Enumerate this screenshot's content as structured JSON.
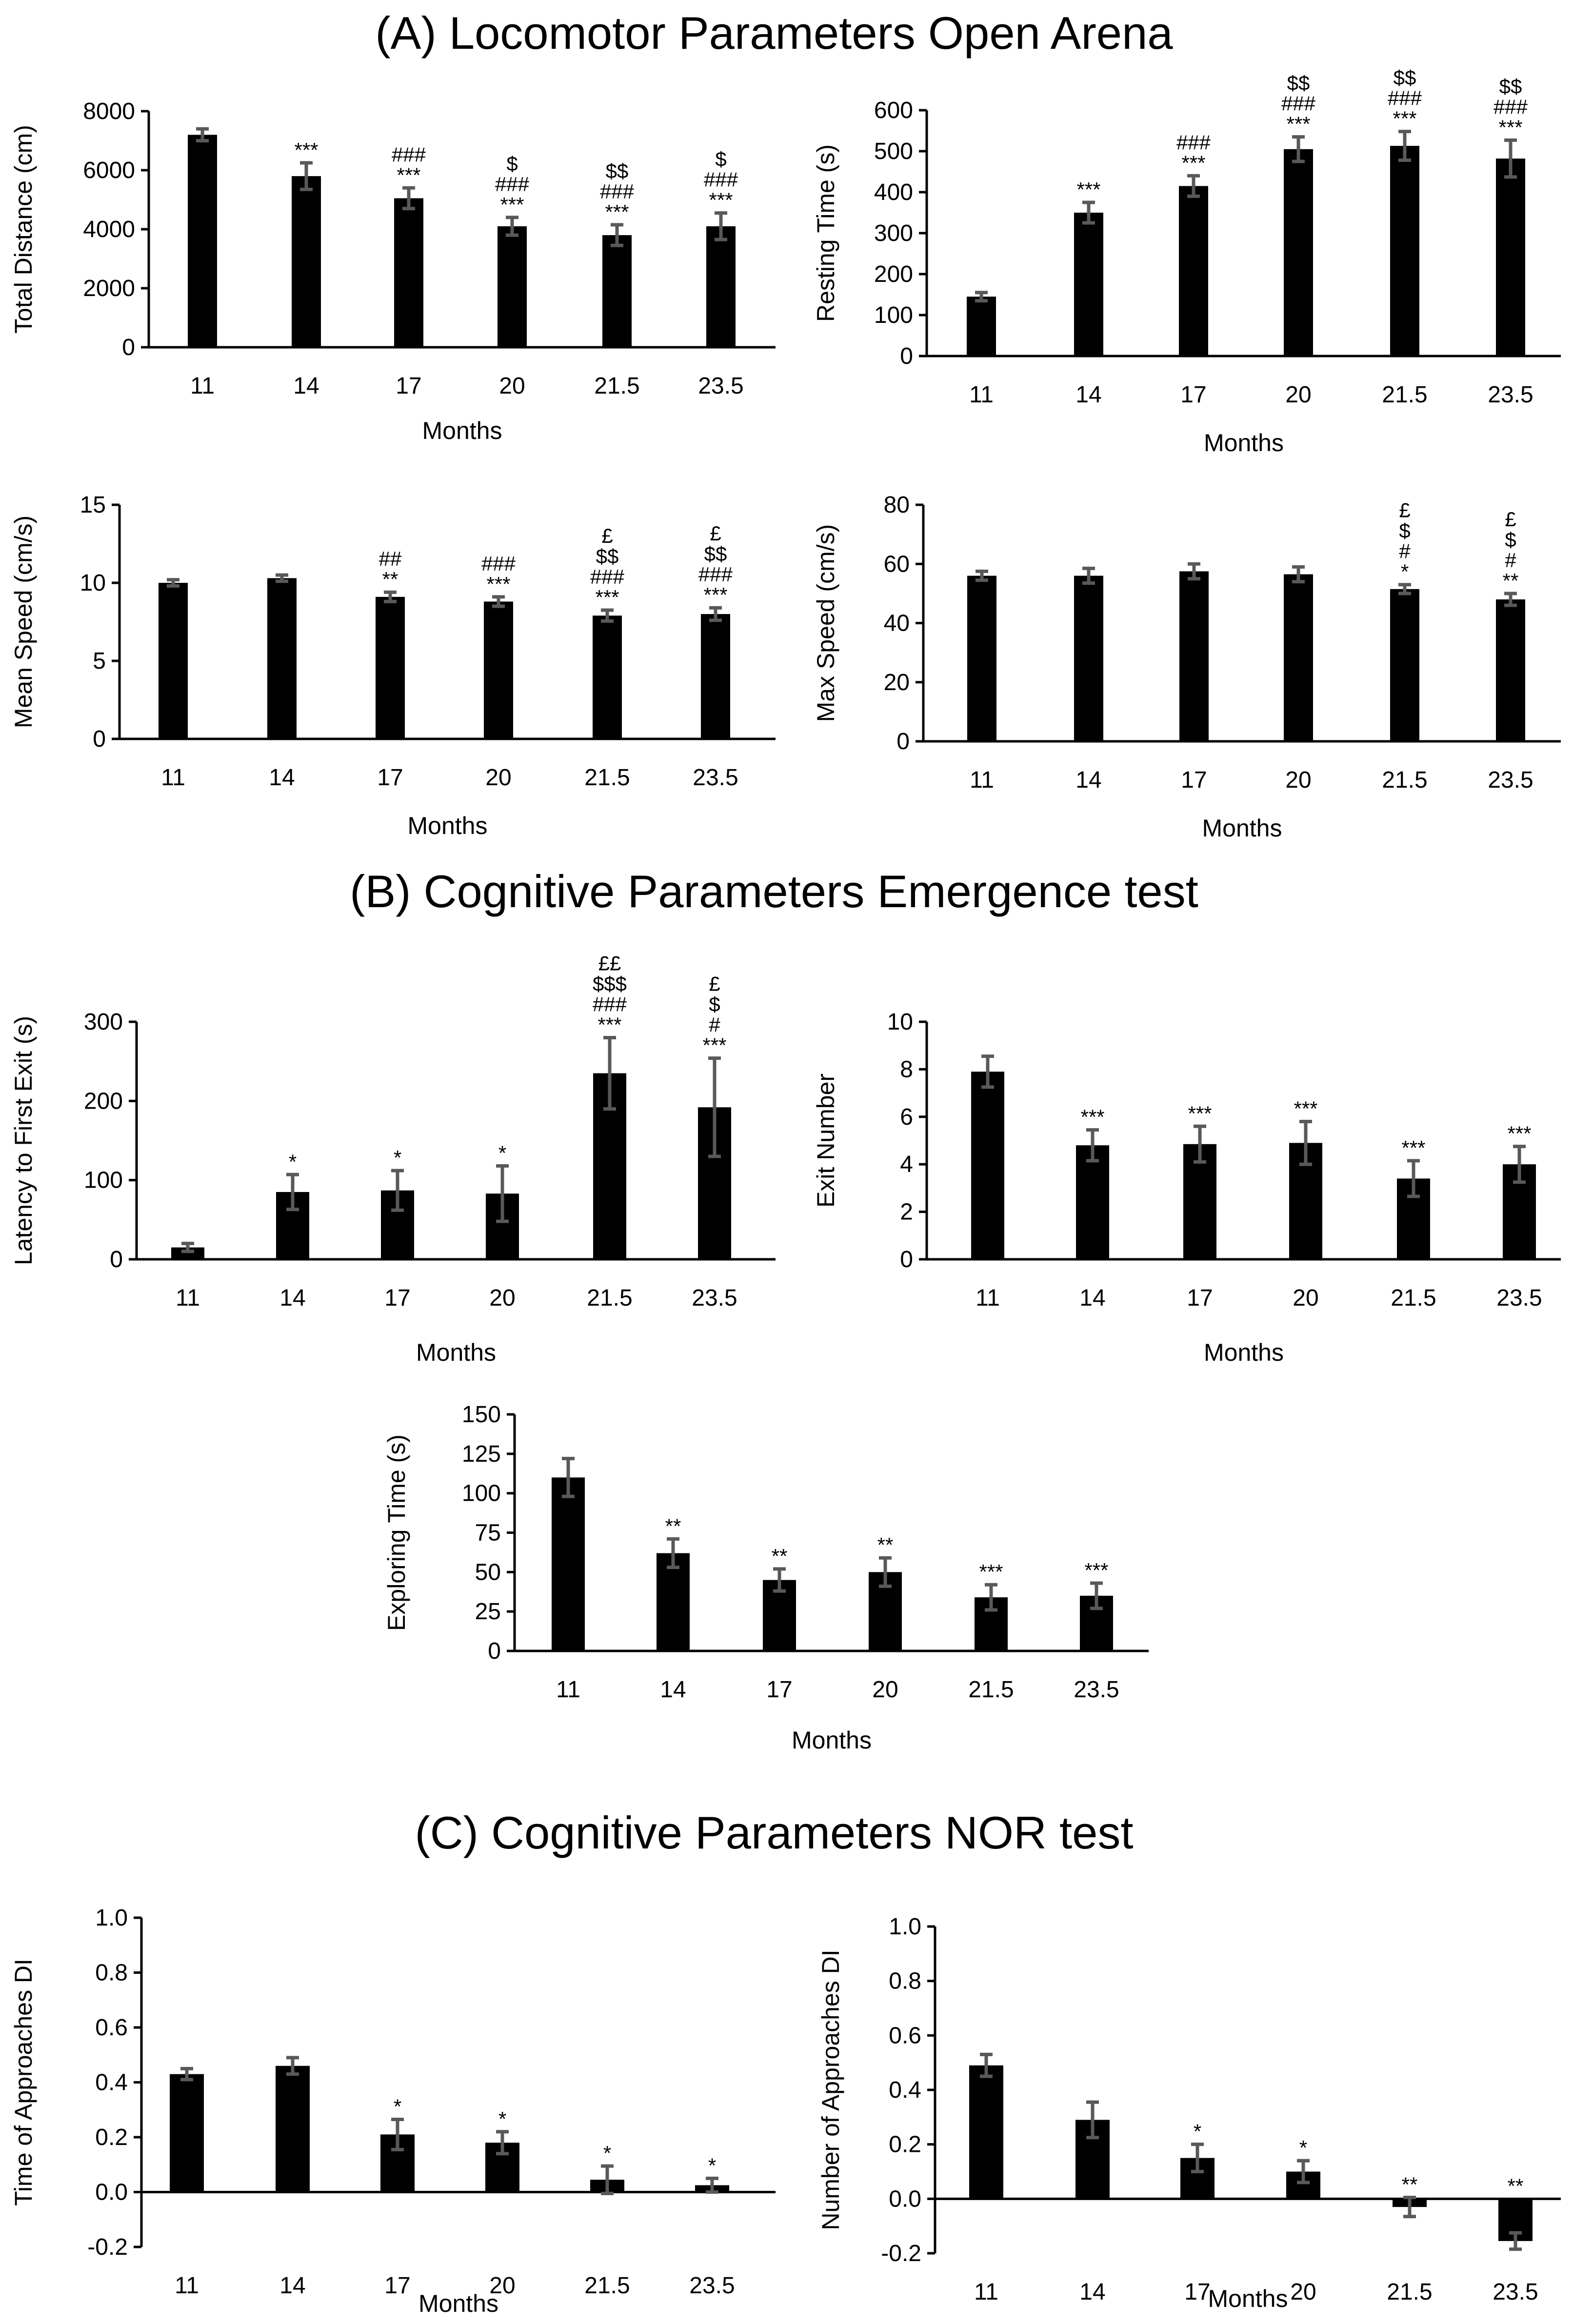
{
  "sections": {
    "A": "(A) Locomotor Parameters Open Arena",
    "B": "(B) Cognitive Parameters Emergence test",
    "C": "(C) Cognitive Parameters NOR test"
  },
  "chart_data": [
    {
      "id": "total-distance",
      "type": "bar",
      "categories": [
        "11",
        "14",
        "17",
        "20",
        "21.5",
        "23.5"
      ],
      "values": [
        7200,
        5800,
        5050,
        4100,
        3800,
        4100
      ],
      "errors": [
        200,
        450,
        350,
        300,
        350,
        450
      ],
      "ylim": [
        0,
        8000
      ],
      "yticks": [
        "0",
        "2000",
        "4000",
        "6000",
        "8000"
      ],
      "xlabel": "Months",
      "ylabel": "Total Distance (cm)",
      "annotations": [
        [],
        [
          "***"
        ],
        [
          "###",
          "***"
        ],
        [
          "$",
          "###",
          "***"
        ],
        [
          "$$",
          "###",
          "***"
        ],
        [
          "$",
          "###",
          "***"
        ]
      ]
    },
    {
      "id": "resting-time",
      "type": "bar",
      "categories": [
        "11",
        "14",
        "17",
        "20",
        "21.5",
        "23.5"
      ],
      "values": [
        145,
        350,
        415,
        505,
        513,
        482
      ],
      "errors": [
        10,
        25,
        25,
        30,
        35,
        45
      ],
      "ylim": [
        0,
        600
      ],
      "yticks": [
        "0",
        "100",
        "200",
        "300",
        "400",
        "500",
        "600"
      ],
      "xlabel": "Months",
      "ylabel": "Resting Time (s)",
      "annotations": [
        [],
        [
          "***"
        ],
        [
          "###",
          "***"
        ],
        [
          "$$",
          "###",
          "***"
        ],
        [
          "$$",
          "###",
          "***"
        ],
        [
          "$$",
          "###",
          "***"
        ]
      ]
    },
    {
      "id": "mean-speed",
      "type": "bar",
      "categories": [
        "11",
        "14",
        "17",
        "20",
        "21.5",
        "23.5"
      ],
      "values": [
        10.0,
        10.3,
        9.1,
        8.8,
        7.9,
        8.0
      ],
      "errors": [
        0.2,
        0.2,
        0.3,
        0.3,
        0.35,
        0.4
      ],
      "ylim": [
        0,
        15
      ],
      "yticks": [
        "0",
        "5",
        "10",
        "15"
      ],
      "xlabel": "Months",
      "ylabel": "Mean Speed (cm/s)",
      "annotations": [
        [],
        [],
        [
          "##",
          "**"
        ],
        [
          "###",
          "***"
        ],
        [
          "£",
          "$$",
          "###",
          "***"
        ],
        [
          "£",
          "$$",
          "###",
          "***"
        ]
      ]
    },
    {
      "id": "max-speed",
      "type": "bar",
      "categories": [
        "11",
        "14",
        "17",
        "20",
        "21.5",
        "23.5"
      ],
      "values": [
        56,
        56,
        57.5,
        56.5,
        51.5,
        48
      ],
      "errors": [
        1.5,
        2.5,
        2.5,
        2.5,
        1.5,
        2
      ],
      "ylim": [
        0,
        80
      ],
      "yticks": [
        "0",
        "20",
        "40",
        "60",
        "80"
      ],
      "xlabel": "Months",
      "ylabel": "Max Speed (cm/s)",
      "annotations": [
        [],
        [],
        [],
        [],
        [
          "£",
          "$",
          "#",
          "*"
        ],
        [
          "£",
          "$",
          "#",
          "**"
        ]
      ]
    },
    {
      "id": "latency-first-exit",
      "type": "bar",
      "categories": [
        "11",
        "14",
        "17",
        "20",
        "21.5",
        "23.5"
      ],
      "values": [
        15,
        85,
        87,
        83,
        235,
        192
      ],
      "errors": [
        5,
        22,
        25,
        35,
        45,
        62
      ],
      "ylim": [
        0,
        300
      ],
      "yticks": [
        "0",
        "100",
        "200",
        "300"
      ],
      "xlabel": "Months",
      "ylabel": "Latency to First Exit (s)",
      "annotations": [
        [],
        [
          "*"
        ],
        [
          "*"
        ],
        [
          "*"
        ],
        [
          "££",
          "$$$",
          "###",
          "***"
        ],
        [
          "£",
          "$",
          "#",
          "***"
        ]
      ]
    },
    {
      "id": "exit-number",
      "type": "bar",
      "categories": [
        "11",
        "14",
        "17",
        "20",
        "21.5",
        "23.5"
      ],
      "values": [
        7.9,
        4.8,
        4.85,
        4.9,
        3.4,
        4.0
      ],
      "errors": [
        0.65,
        0.65,
        0.75,
        0.9,
        0.75,
        0.75
      ],
      "ylim": [
        0,
        10
      ],
      "yticks": [
        "0",
        "2",
        "4",
        "6",
        "8",
        "10"
      ],
      "xlabel": "Months",
      "ylabel": "Exit Number",
      "annotations": [
        [],
        [
          "***"
        ],
        [
          "***"
        ],
        [
          "***"
        ],
        [
          "***"
        ],
        [
          "***"
        ]
      ]
    },
    {
      "id": "exploring-time",
      "type": "bar",
      "categories": [
        "11",
        "14",
        "17",
        "20",
        "21.5",
        "23.5"
      ],
      "values": [
        110,
        62,
        45,
        50,
        34,
        35
      ],
      "errors": [
        12,
        9,
        7,
        9,
        8,
        8
      ],
      "ylim": [
        0,
        150
      ],
      "yticks": [
        "0",
        "25",
        "50",
        "75",
        "100",
        "125",
        "150"
      ],
      "xlabel": "Months",
      "ylabel": "Exploring Time (s)",
      "annotations": [
        [],
        [
          "**"
        ],
        [
          "**"
        ],
        [
          "**"
        ],
        [
          "***"
        ],
        [
          "***"
        ]
      ]
    },
    {
      "id": "time-approaches-di",
      "type": "bar",
      "categories": [
        "11",
        "14",
        "17",
        "20",
        "21.5",
        "23.5"
      ],
      "values": [
        0.43,
        0.46,
        0.21,
        0.18,
        0.045,
        0.025
      ],
      "errors": [
        0.02,
        0.03,
        0.055,
        0.04,
        0.05,
        0.025
      ],
      "ylim": [
        -0.2,
        1.0
      ],
      "yticks": [
        "-0.2",
        "0.0",
        "0.2",
        "0.4",
        "0.6",
        "0.8",
        "1.0"
      ],
      "xlabel": "Months",
      "ylabel": "Time of Approaches  DI",
      "annotations": [
        [],
        [],
        [
          "*"
        ],
        [
          "*"
        ],
        [
          "*"
        ],
        [
          "*"
        ]
      ]
    },
    {
      "id": "number-approaches-di",
      "type": "bar",
      "categories": [
        "11",
        "14",
        "17",
        "20",
        "21.5",
        "23.5"
      ],
      "values": [
        0.49,
        0.29,
        0.15,
        0.1,
        -0.03,
        -0.155
      ],
      "errors": [
        0.04,
        0.065,
        0.05,
        0.04,
        0.035,
        0.03
      ],
      "ylim": [
        -0.2,
        1.0
      ],
      "yticks": [
        "-0.2",
        "0.0",
        "0.2",
        "0.4",
        "0.6",
        "0.8",
        "1.0"
      ],
      "xlabel": "Months",
      "ylabel": "Number of Approaches DI",
      "annotations": [
        [],
        [],
        [
          "*"
        ],
        [
          "*"
        ],
        [
          "**"
        ],
        [
          "**"
        ]
      ]
    }
  ]
}
